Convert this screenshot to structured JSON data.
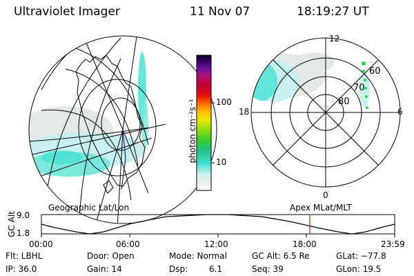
{
  "header": {
    "instrument": "Ultraviolet Imager",
    "date": "11 Nov 07",
    "time": "18:19:27 UT"
  },
  "colorbar": {
    "unit_label": "photon cm⁻²s⁻¹",
    "ticks": [
      {
        "value": 100,
        "label": "100"
      },
      {
        "value": 10,
        "label": "10"
      }
    ],
    "scale": "log"
  },
  "left_panel": {
    "label": "Geographic Lat/Lon"
  },
  "right_panel": {
    "label": "Apex MLat/MLT",
    "mlt_labels": {
      "top": "12",
      "left": "18",
      "right": "6",
      "bottom": "0"
    },
    "mlat_labels": [
      "60",
      "70",
      "80"
    ]
  },
  "altitude_plot": {
    "ylabel": "GC Alt",
    "yticks": [
      "9.0",
      "1.8"
    ],
    "xticks": [
      "00:00",
      "06:00",
      "12:00",
      "18:00",
      "23:59"
    ],
    "current_time_marker": "18:19"
  },
  "info": {
    "flt": "Flt: LBHL",
    "door": "Door: Open",
    "mode": "Mode: Normal",
    "gc_alt": "GC Alt: 6.5 Re",
    "glat": "GLat: −77.8",
    "ip": "IP: 36.0",
    "gain": "Gain: 14",
    "dsp_label": "Dsp:",
    "dsp_value": "6.1",
    "seq": "Seq: 39",
    "glon": "GLon: 19.5"
  },
  "colors": {
    "aurora_cyan": "#40e0d0",
    "aurora_light": "#c8f0ee",
    "aurora_grey": "#e4e8e8",
    "marker_red": "#cc2222",
    "footpoint_green": "#22dd44",
    "track_blue": "#1a1a9a"
  }
}
